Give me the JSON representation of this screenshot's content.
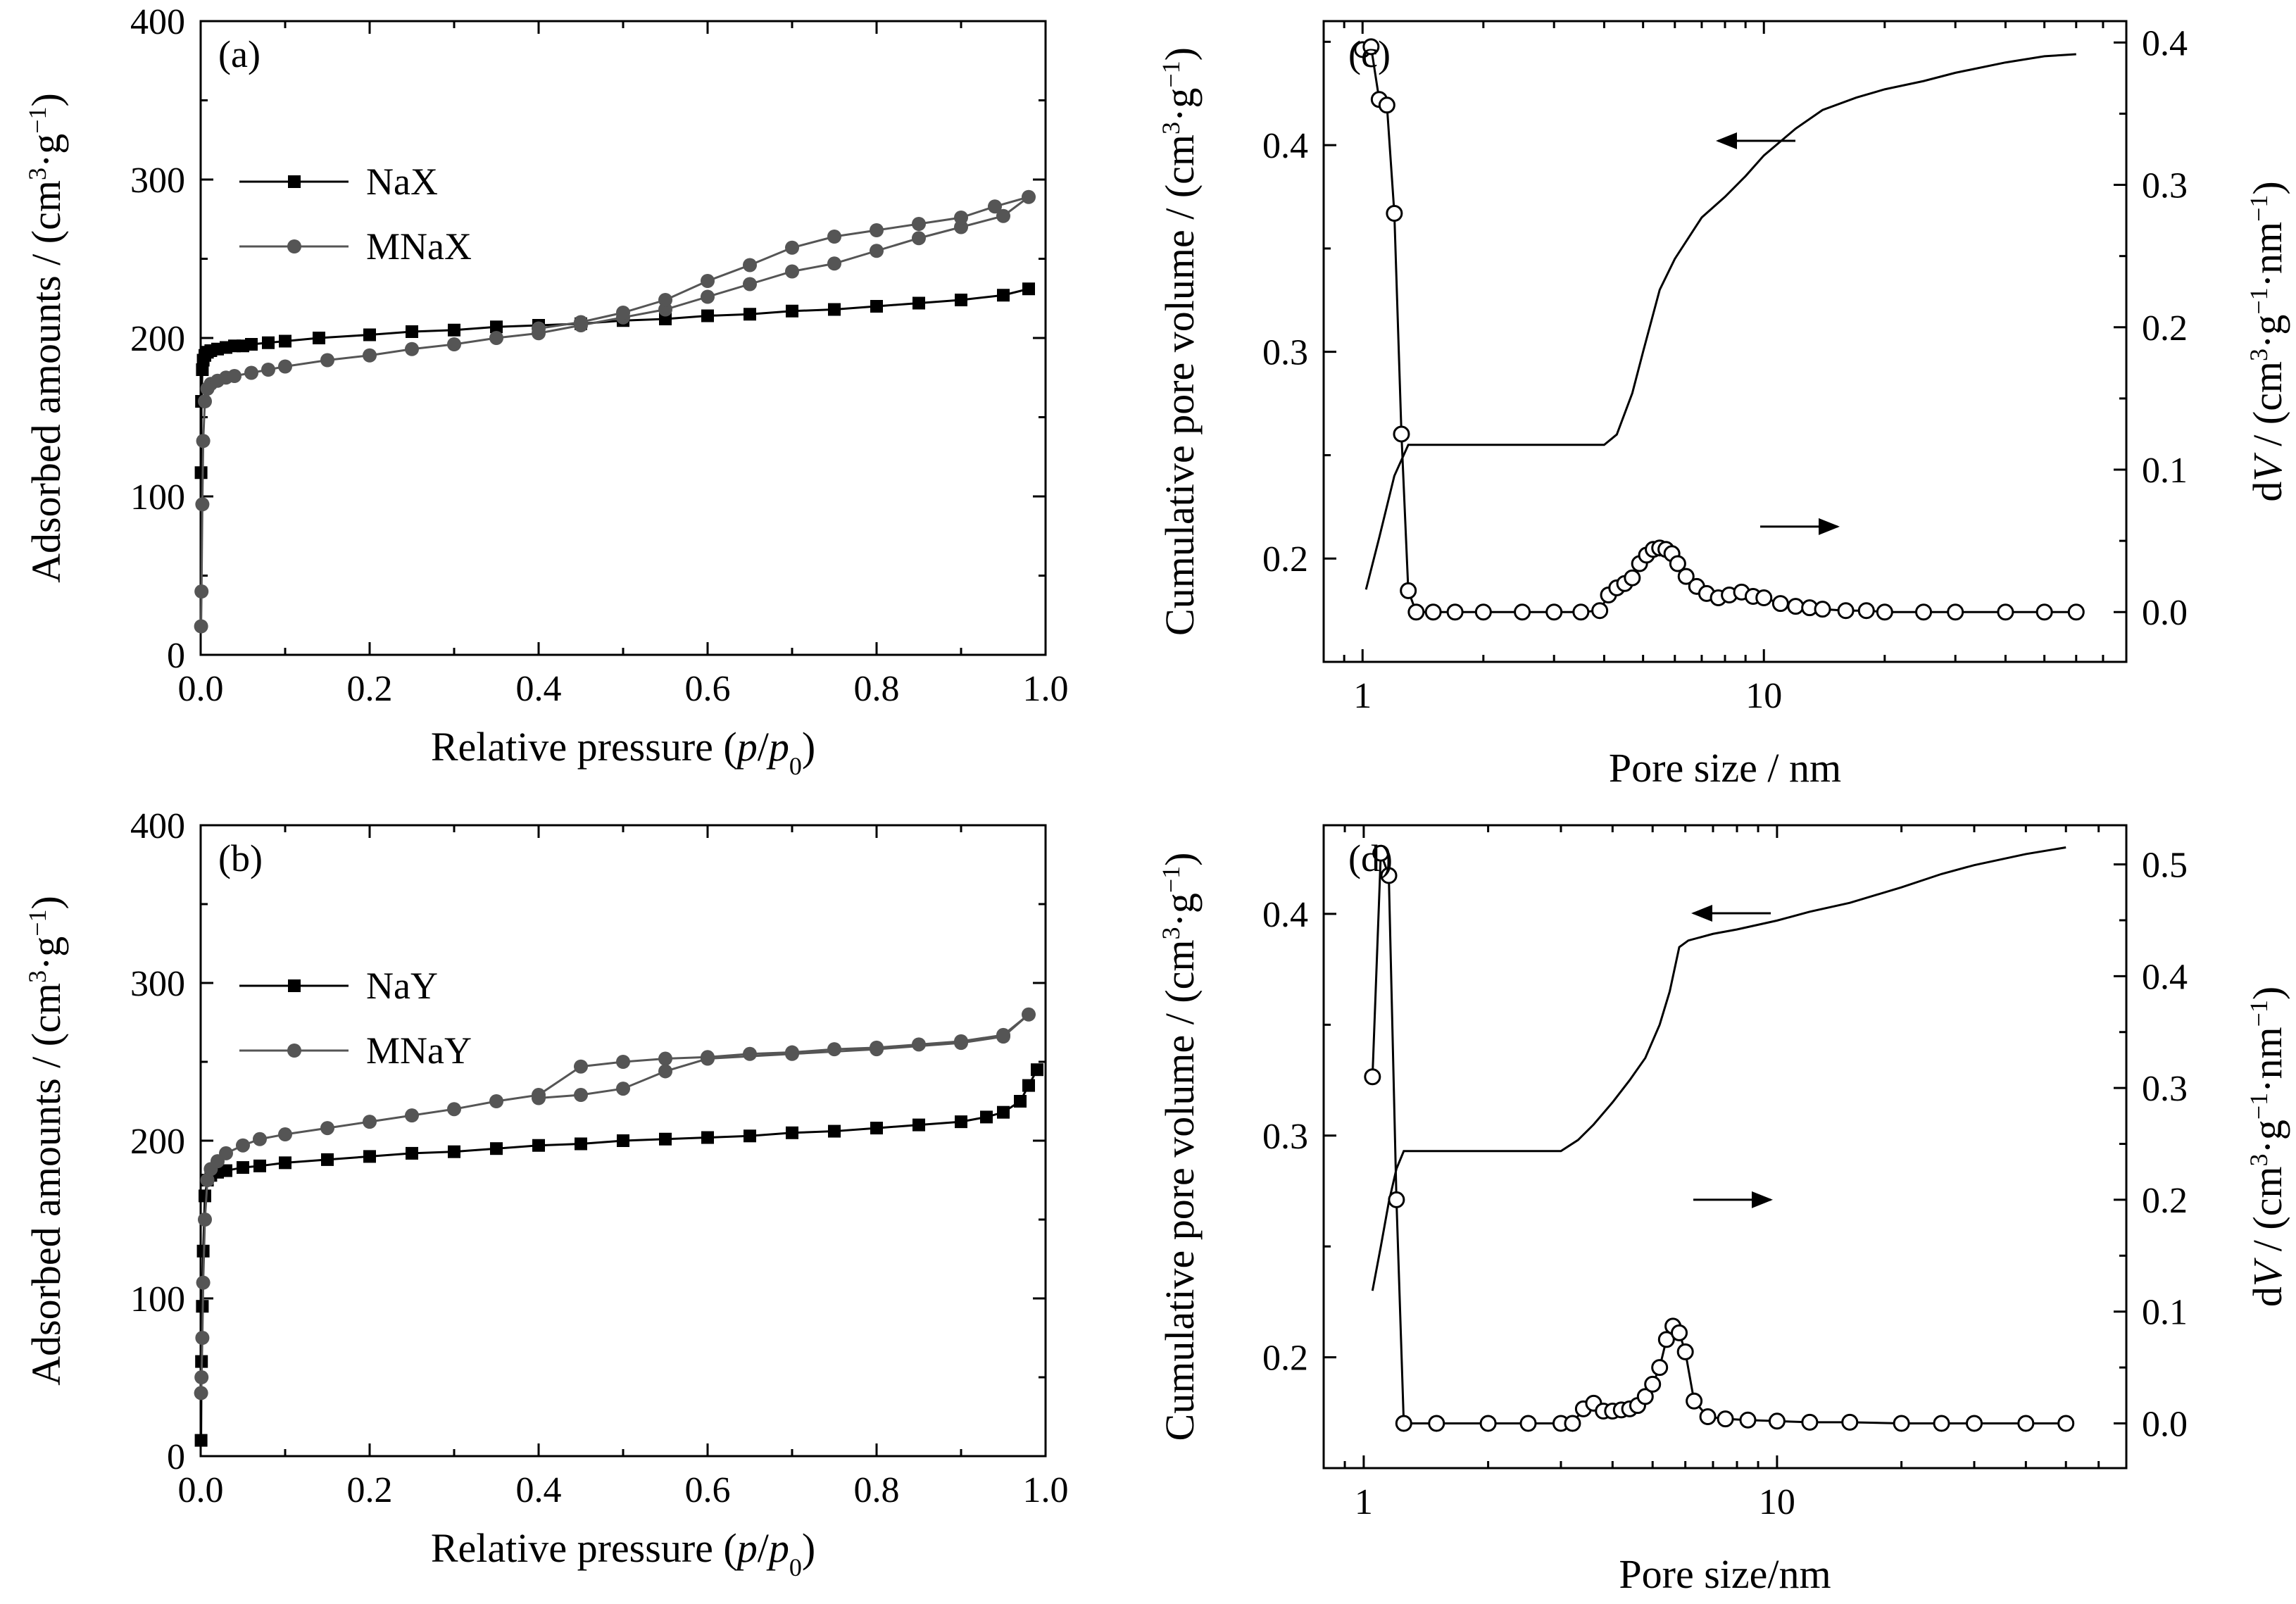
{
  "chart_data": [
    {
      "panel": "(a)",
      "type": "line",
      "xlabel": "Relative pressure (p/p0)",
      "ylabel": "Adsorbed amounts / (cm³·g⁻¹)",
      "xlim": [
        0,
        1.0
      ],
      "ylim": [
        0,
        400
      ],
      "xticks": [
        "0.0",
        "0.2",
        "0.4",
        "0.6",
        "0.8",
        "1.0"
      ],
      "yticks": [
        "0",
        "100",
        "200",
        "300",
        "400"
      ],
      "legend": "top-left",
      "series": [
        {
          "name": "NaX",
          "marker": "square",
          "color": "#000000",
          "x": [
            0.0005,
            0.001,
            0.002,
            0.003,
            0.005,
            0.008,
            0.012,
            0.02,
            0.03,
            0.04,
            0.05,
            0.06,
            0.08,
            0.1,
            0.14,
            0.2,
            0.25,
            0.3,
            0.35,
            0.4,
            0.45,
            0.5,
            0.55,
            0.6,
            0.65,
            0.7,
            0.75,
            0.8,
            0.85,
            0.9,
            0.95,
            0.98
          ],
          "y": [
            115,
            160,
            180,
            186,
            189,
            191,
            192,
            193,
            194,
            195,
            195,
            196,
            197,
            198,
            200,
            202,
            204,
            205,
            207,
            208,
            209,
            211,
            212,
            214,
            215,
            217,
            218,
            220,
            222,
            224,
            227,
            231
          ]
        },
        {
          "name": "MNaX",
          "marker": "circle",
          "color": "#555555",
          "x": [
            0.0005,
            0.001,
            0.002,
            0.003,
            0.005,
            0.008,
            0.012,
            0.02,
            0.03,
            0.04,
            0.06,
            0.08,
            0.1,
            0.15,
            0.2,
            0.25,
            0.3,
            0.35,
            0.4,
            0.45,
            0.5,
            0.55,
            0.6,
            0.65,
            0.7,
            0.75,
            0.8,
            0.85,
            0.9,
            0.95,
            0.98,
            0.94,
            0.9,
            0.85,
            0.8,
            0.75,
            0.7,
            0.65,
            0.6,
            0.55,
            0.5,
            0.45,
            0.4
          ],
          "y": [
            18,
            40,
            95,
            135,
            160,
            168,
            171,
            173,
            175,
            176,
            178,
            180,
            182,
            186,
            189,
            193,
            196,
            200,
            203,
            208,
            213,
            218,
            226,
            234,
            242,
            247,
            255,
            263,
            270,
            277,
            289,
            283,
            276,
            272,
            268,
            264,
            257,
            246,
            236,
            224,
            216,
            210,
            206
          ]
        }
      ]
    },
    {
      "panel": "(b)",
      "type": "line",
      "xlabel": "Relative pressure (p/p0)",
      "ylabel": "Adsorbed amounts / (cm³·g⁻¹)",
      "xlim": [
        0,
        1.0
      ],
      "ylim": [
        0,
        400
      ],
      "xticks": [
        "0.0",
        "0.2",
        "0.4",
        "0.6",
        "0.8",
        "1.0"
      ],
      "yticks": [
        "0",
        "100",
        "200",
        "300",
        "400"
      ],
      "legend": "top-left",
      "series": [
        {
          "name": "NaY",
          "marker": "square",
          "color": "#000000",
          "x": [
            0.0005,
            0.001,
            0.002,
            0.003,
            0.005,
            0.008,
            0.012,
            0.02,
            0.03,
            0.05,
            0.07,
            0.1,
            0.15,
            0.2,
            0.25,
            0.3,
            0.35,
            0.4,
            0.45,
            0.5,
            0.55,
            0.6,
            0.65,
            0.7,
            0.75,
            0.8,
            0.85,
            0.9,
            0.93,
            0.95,
            0.97,
            0.98,
            0.99
          ],
          "y": [
            10,
            60,
            95,
            130,
            165,
            175,
            178,
            180,
            181,
            183,
            184,
            186,
            188,
            190,
            192,
            193,
            195,
            197,
            198,
            200,
            201,
            202,
            203,
            205,
            206,
            208,
            210,
            212,
            215,
            218,
            225,
            235,
            245
          ]
        },
        {
          "name": "MNaY",
          "marker": "circle",
          "color": "#555555",
          "x": [
            0.0005,
            0.001,
            0.002,
            0.003,
            0.005,
            0.008,
            0.012,
            0.02,
            0.03,
            0.05,
            0.07,
            0.1,
            0.15,
            0.2,
            0.25,
            0.3,
            0.35,
            0.4,
            0.45,
            0.5,
            0.55,
            0.6,
            0.65,
            0.7,
            0.75,
            0.8,
            0.85,
            0.9,
            0.95,
            0.98,
            0.95,
            0.9,
            0.8,
            0.7,
            0.6,
            0.55,
            0.5,
            0.45,
            0.4
          ],
          "y": [
            40,
            50,
            75,
            110,
            150,
            175,
            182,
            187,
            192,
            197,
            201,
            204,
            208,
            212,
            216,
            220,
            225,
            229,
            247,
            250,
            252,
            253,
            255,
            256,
            258,
            259,
            261,
            263,
            267,
            280,
            266,
            262,
            258,
            255,
            252,
            244,
            233,
            229,
            227
          ]
        }
      ]
    },
    {
      "panel": "(c)",
      "type": "line",
      "xlabel": "Pore size / nm",
      "ylabel_left": "Cumulative pore volume / (cm³·g⁻¹)",
      "ylabel_right": "dV / (cm³·g⁻¹·nm⁻¹)",
      "xscale": "log",
      "xlim": [
        0.8,
        80
      ],
      "ylim_left": [
        0.15,
        0.46
      ],
      "ylim_right": [
        -0.035,
        0.415
      ],
      "xticks": [
        "1",
        "10"
      ],
      "yticks_left": [
        "0.2",
        "0.3",
        "0.4"
      ],
      "yticks_right": [
        "0.0",
        "0.1",
        "0.2",
        "0.3",
        "0.4"
      ],
      "annotations": [
        "arrow pointing left toward cumulative curve",
        "arrow pointing right toward dV curve"
      ],
      "series": [
        {
          "name": "",
          "axis": "left",
          "marker": "none",
          "x": [
            1.02,
            1.1,
            1.2,
            1.3,
            1.5,
            2,
            3,
            4,
            4.3,
            4.7,
            5,
            5.5,
            6,
            7,
            8,
            9,
            10,
            12,
            14,
            17,
            20,
            25,
            30,
            40,
            50,
            60
          ],
          "y": [
            0.185,
            0.21,
            0.24,
            0.255,
            0.255,
            0.255,
            0.255,
            0.255,
            0.26,
            0.28,
            0.3,
            0.33,
            0.345,
            0.365,
            0.375,
            0.385,
            0.395,
            0.408,
            0.417,
            0.423,
            0.427,
            0.431,
            0.435,
            0.44,
            0.443,
            0.444
          ]
        },
        {
          "name": "",
          "axis": "right",
          "marker": "open-circle",
          "x": [
            1.0,
            1.05,
            1.1,
            1.15,
            1.2,
            1.25,
            1.3,
            1.36,
            1.5,
            1.7,
            2,
            2.5,
            3,
            3.5,
            3.9,
            4.1,
            4.3,
            4.5,
            4.7,
            4.9,
            5.1,
            5.3,
            5.5,
            5.7,
            5.9,
            6.1,
            6.4,
            6.8,
            7.2,
            7.7,
            8.2,
            8.8,
            9.4,
            10,
            11,
            12,
            13,
            14,
            16,
            18,
            20,
            25,
            30,
            40,
            50,
            60
          ],
          "y": [
            0.395,
            0.397,
            0.36,
            0.356,
            0.28,
            0.125,
            0.015,
            0.0,
            0.0,
            0.0,
            0.0,
            0.0,
            0.0,
            0.0,
            0.001,
            0.012,
            0.017,
            0.02,
            0.024,
            0.034,
            0.04,
            0.044,
            0.045,
            0.044,
            0.041,
            0.034,
            0.025,
            0.018,
            0.013,
            0.01,
            0.012,
            0.014,
            0.011,
            0.01,
            0.006,
            0.004,
            0.003,
            0.002,
            0.001,
            0.001,
            0.0,
            0.0,
            0.0,
            0.0,
            0.0,
            0.0
          ]
        }
      ]
    },
    {
      "panel": "(d)",
      "type": "line",
      "xlabel": "Pore size/nm",
      "ylabel_left": "Cumulative pore volume / (cm³·g⁻¹)",
      "ylabel_right": "dV / (cm³·g⁻¹·nm⁻¹)",
      "xscale": "log",
      "xlim": [
        0.8,
        70
      ],
      "ylim_left": [
        0.15,
        0.44
      ],
      "ylim_right": [
        -0.04,
        0.535
      ],
      "xticks": [
        "1",
        "10"
      ],
      "yticks_left": [
        "0.2",
        "0.3",
        "0.4"
      ],
      "yticks_right": [
        "0.0",
        "0.1",
        "0.2",
        "0.3",
        "0.4",
        "0.5"
      ],
      "annotations": [
        "arrow pointing left toward cumulative curve",
        "arrow pointing right toward dV curve"
      ],
      "series": [
        {
          "name": "",
          "axis": "left",
          "marker": "none",
          "x": [
            1.05,
            1.1,
            1.15,
            1.2,
            1.25,
            1.5,
            2,
            3,
            3.3,
            3.6,
            4,
            4.4,
            4.8,
            5.2,
            5.5,
            5.8,
            6.1,
            7,
            8,
            10,
            12,
            15,
            20,
            25,
            30,
            40,
            50
          ],
          "y": [
            0.23,
            0.25,
            0.27,
            0.285,
            0.293,
            0.293,
            0.293,
            0.293,
            0.298,
            0.305,
            0.315,
            0.325,
            0.335,
            0.35,
            0.365,
            0.385,
            0.388,
            0.391,
            0.393,
            0.397,
            0.401,
            0.405,
            0.412,
            0.418,
            0.422,
            0.427,
            0.43
          ]
        },
        {
          "name": "",
          "axis": "right",
          "marker": "open-circle",
          "x": [
            1.05,
            1.1,
            1.15,
            1.2,
            1.25,
            1.5,
            2,
            2.5,
            3,
            3.2,
            3.4,
            3.6,
            3.8,
            4.0,
            4.2,
            4.4,
            4.6,
            4.8,
            5.0,
            5.2,
            5.4,
            5.6,
            5.8,
            6.0,
            6.3,
            6.8,
            7.5,
            8.5,
            10,
            12,
            15,
            20,
            25,
            30,
            40,
            50
          ],
          "y": [
            0.31,
            0.51,
            0.49,
            0.2,
            0.0,
            0.0,
            0.0,
            0.0,
            0.0,
            0.0,
            0.013,
            0.018,
            0.011,
            0.011,
            0.012,
            0.013,
            0.016,
            0.024,
            0.035,
            0.05,
            0.075,
            0.087,
            0.081,
            0.064,
            0.02,
            0.006,
            0.004,
            0.003,
            0.002,
            0.001,
            0.001,
            0.0,
            0.0,
            0.0,
            0.0,
            0.0
          ]
        }
      ]
    }
  ]
}
